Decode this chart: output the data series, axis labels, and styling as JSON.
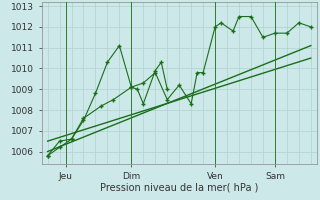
{
  "xlabel": "Pression niveau de la mer( hPa )",
  "background_color": "#cce8e8",
  "grid_color": "#b0d0d0",
  "line_color": "#1a6e1a",
  "ylim": [
    1005.4,
    1013.2
  ],
  "xlim": [
    -0.5,
    22.5
  ],
  "xtick_positions": [
    1.5,
    7,
    14,
    19
  ],
  "xtick_labels": [
    "Jeu",
    "Dim",
    "Ven",
    "Sam"
  ],
  "ytick_positions": [
    1006,
    1007,
    1008,
    1009,
    1010,
    1011,
    1012,
    1013
  ],
  "vline_positions": [
    1.5,
    7,
    14,
    19
  ],
  "line1_x": [
    0.0,
    1.0,
    2.0,
    3.0,
    4.5,
    5.5,
    7.0,
    8.0,
    9.0,
    10.0,
    11.0,
    12.0,
    12.5,
    13.0,
    14.0,
    14.5,
    15.5,
    16.0,
    17.0,
    18.0,
    19.0,
    20.0,
    21.0,
    22.0
  ],
  "line1_y": [
    1005.8,
    1006.2,
    1006.6,
    1007.6,
    1008.2,
    1008.5,
    1009.1,
    1009.3,
    1009.8,
    1008.5,
    1009.2,
    1008.3,
    1009.8,
    1009.8,
    1012.0,
    1012.2,
    1011.8,
    1012.5,
    1012.5,
    1011.5,
    1011.7,
    1011.7,
    1012.2,
    1012.0
  ],
  "line2_x": [
    0.0,
    1.0,
    2.0,
    3.0,
    4.0,
    5.0,
    6.0,
    7.0,
    7.5,
    8.0,
    9.0,
    9.5,
    10.0
  ],
  "line2_y": [
    1005.8,
    1006.5,
    1006.6,
    1007.5,
    1008.8,
    1010.3,
    1011.1,
    1009.1,
    1009.0,
    1008.3,
    1009.9,
    1010.3,
    1009.0
  ],
  "line3_x": [
    0.0,
    22.0
  ],
  "line3_y": [
    1006.0,
    1011.1
  ],
  "line4_x": [
    0.0,
    22.0
  ],
  "line4_y": [
    1006.5,
    1010.5
  ]
}
